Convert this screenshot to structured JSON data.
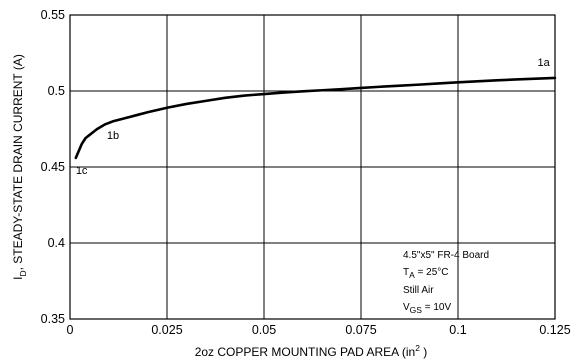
{
  "chart_data": {
    "type": "line",
    "xlabel_main": "2oz COPPER MOUNTING PAD AREA (in",
    "xlabel_sup": "2",
    "xlabel_end": " )",
    "ylabel_sym": "I",
    "ylabel_sub": "D",
    "ylabel_rest": ", STEADY-STATE DRAIN CURRENT (A)",
    "xlim": [
      0,
      0.125
    ],
    "ylim": [
      0.35,
      0.55
    ],
    "x_ticks": [
      0,
      0.025,
      0.05,
      0.075,
      0.1,
      0.125
    ],
    "x_tick_labels": [
      "0",
      "0.025",
      "0.05",
      "0.075",
      "0.1",
      "0.125"
    ],
    "y_ticks": [
      0.35,
      0.4,
      0.45,
      0.5,
      0.55
    ],
    "y_tick_labels": [
      "0.35",
      "0.4",
      "0.45",
      "0.5",
      "0.55"
    ],
    "grid": true,
    "series": [
      {
        "x": [
          0.0015,
          0.002,
          0.003,
          0.004,
          0.005,
          0.007,
          0.009,
          0.011,
          0.014,
          0.017,
          0.02,
          0.025,
          0.03,
          0.035,
          0.04,
          0.045,
          0.05,
          0.055,
          0.06,
          0.065,
          0.07,
          0.075,
          0.08,
          0.085,
          0.09,
          0.095,
          0.1,
          0.105,
          0.11,
          0.115,
          0.12,
          0.125
        ],
        "y": [
          0.456,
          0.459,
          0.465,
          0.469,
          0.471,
          0.475,
          0.478,
          0.48,
          0.482,
          0.484,
          0.486,
          0.489,
          0.4915,
          0.4935,
          0.4955,
          0.497,
          0.498,
          0.499,
          0.4998,
          0.5005,
          0.5012,
          0.502,
          0.5028,
          0.5035,
          0.5042,
          0.505,
          0.5057,
          0.5064,
          0.507,
          0.5076,
          0.5081,
          0.5086
        ]
      }
    ],
    "annotations": [
      {
        "text": "1a",
        "x": 0.1205,
        "y": 0.5165
      },
      {
        "text": "1b",
        "x": 0.0095,
        "y": 0.4685
      },
      {
        "text": "1c",
        "x": 0.0015,
        "y": 0.4455
      }
    ],
    "note": {
      "line1": "4.5\"x5\" FR-4 Board",
      "line2_sym": "T",
      "line2_sub": "A",
      "line2_rest": " = 25°C",
      "line3": "Still Air",
      "line4_sym": "V",
      "line4_sub": "GS",
      "line4_rest": " = 10V"
    }
  }
}
